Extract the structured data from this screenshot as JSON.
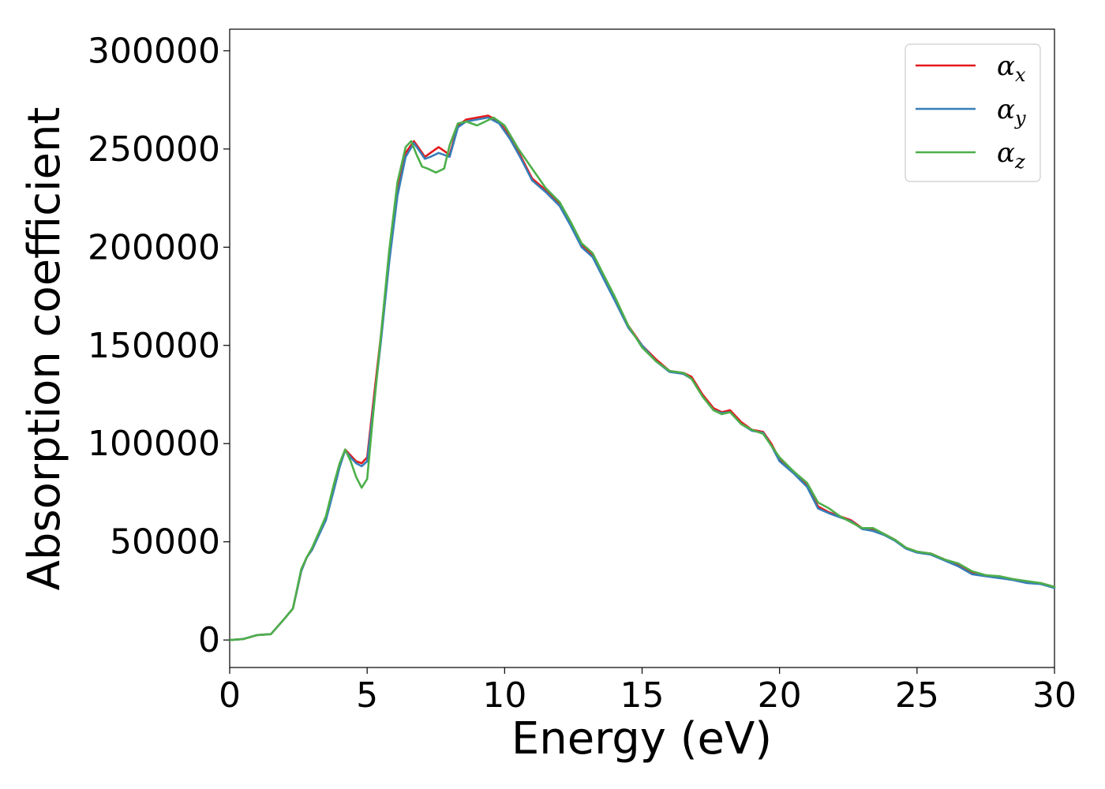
{
  "chart_data": {
    "type": "line",
    "title": "",
    "xlabel": "Energy (eV)",
    "ylabel": "Absorption coefficient",
    "xlim": [
      0,
      30
    ],
    "ylim": [
      -14000,
      311000
    ],
    "xticks": [
      0,
      5,
      10,
      15,
      20,
      25,
      30
    ],
    "yticks": [
      0,
      50000,
      100000,
      150000,
      200000,
      250000,
      300000
    ],
    "xtick_labels": [
      "0",
      "5",
      "10",
      "15",
      "20",
      "25",
      "30"
    ],
    "ytick_labels": [
      "0",
      "50000",
      "100000",
      "150000",
      "200000",
      "250000",
      "300000"
    ],
    "grid": false,
    "legend_position": "top-right",
    "series": [
      {
        "name": "α_x",
        "label_main": "α",
        "label_sub": "x",
        "color": "#e41a1c",
        "x": [
          0,
          0.5,
          1.0,
          1.5,
          2.0,
          2.3,
          2.6,
          2.8,
          3.0,
          3.5,
          3.8,
          4.0,
          4.2,
          4.4,
          4.6,
          4.8,
          5.0,
          5.2,
          5.5,
          5.8,
          6.1,
          6.4,
          6.7,
          6.9,
          7.1,
          7.3,
          7.6,
          7.8,
          8.0,
          8.3,
          8.6,
          9.0,
          9.4,
          9.8,
          10.2,
          10.6,
          11.0,
          11.5,
          12.0,
          12.4,
          12.8,
          13.2,
          13.6,
          14.0,
          14.5,
          15.0,
          15.5,
          16.0,
          16.5,
          16.8,
          17.2,
          17.6,
          17.9,
          18.2,
          18.6,
          19.0,
          19.4,
          19.7,
          20.0,
          20.5,
          21.0,
          21.4,
          21.8,
          22.2,
          22.6,
          23.0,
          23.4,
          23.8,
          24.2,
          24.6,
          25.0,
          25.5,
          26.0,
          26.5,
          27.0,
          27.5,
          28.0,
          28.5,
          29.0,
          29.5,
          30.0
        ],
        "y": [
          0,
          500,
          2500,
          3000,
          11000,
          16000,
          35000,
          42000,
          46000,
          62000,
          78000,
          89000,
          97000,
          94000,
          91000,
          90000,
          93000,
          118000,
          155000,
          195000,
          228000,
          248000,
          254000,
          250000,
          246000,
          248000,
          251000,
          249000,
          247000,
          262000,
          265000,
          266000,
          267000,
          264000,
          256000,
          246000,
          235000,
          229000,
          222000,
          212000,
          201000,
          196000,
          185000,
          174000,
          160000,
          150000,
          143000,
          137000,
          136000,
          134000,
          125000,
          118000,
          116000,
          117000,
          111000,
          107000,
          106000,
          100000,
          92000,
          86000,
          79000,
          68000,
          65000,
          63000,
          61000,
          57000,
          56000,
          54000,
          51000,
          47000,
          45000,
          44000,
          41000,
          38000,
          34000,
          33000,
          32000,
          31000,
          29500,
          29000,
          27000
        ]
      },
      {
        "name": "α_y",
        "label_main": "α",
        "label_sub": "y",
        "color": "#377eb8",
        "x": [
          0,
          0.5,
          1.0,
          1.5,
          2.0,
          2.3,
          2.6,
          2.8,
          3.0,
          3.5,
          3.8,
          4.0,
          4.2,
          4.4,
          4.6,
          4.8,
          5.0,
          5.2,
          5.5,
          5.8,
          6.1,
          6.4,
          6.7,
          6.9,
          7.1,
          7.3,
          7.6,
          7.8,
          8.0,
          8.3,
          8.6,
          9.0,
          9.4,
          9.8,
          10.2,
          10.6,
          11.0,
          11.5,
          12.0,
          12.4,
          12.8,
          13.2,
          13.6,
          14.0,
          14.5,
          15.0,
          15.5,
          16.0,
          16.5,
          16.8,
          17.2,
          17.6,
          17.9,
          18.2,
          18.6,
          19.0,
          19.4,
          19.7,
          20.0,
          20.5,
          21.0,
          21.4,
          21.8,
          22.2,
          22.6,
          23.0,
          23.4,
          23.8,
          24.2,
          24.6,
          25.0,
          25.5,
          26.0,
          26.5,
          27.0,
          27.5,
          28.0,
          28.5,
          29.0,
          29.5,
          30.0
        ],
        "y": [
          0,
          500,
          2500,
          3000,
          11000,
          16000,
          35000,
          42000,
          46000,
          61000,
          77000,
          88000,
          96500,
          93000,
          90000,
          88500,
          91000,
          115000,
          152000,
          192000,
          226000,
          246000,
          253000,
          249000,
          245000,
          246000,
          248000,
          247000,
          246000,
          261000,
          264000,
          265000,
          266000,
          263000,
          255000,
          245000,
          234000,
          228000,
          221000,
          211000,
          200000,
          195000,
          184000,
          173000,
          159000,
          150000,
          142000,
          136500,
          135500,
          133000,
          124000,
          117000,
          115500,
          116000,
          110000,
          106500,
          105500,
          99000,
          91000,
          85000,
          78000,
          67000,
          64500,
          62500,
          60500,
          56500,
          55500,
          53500,
          50500,
          46500,
          44500,
          43500,
          40500,
          37500,
          33500,
          32500,
          31500,
          30500,
          29000,
          28500,
          26500
        ]
      },
      {
        "name": "α_z",
        "label_main": "α",
        "label_sub": "z",
        "color": "#4daf4a",
        "x": [
          0,
          0.5,
          1.0,
          1.5,
          2.0,
          2.3,
          2.6,
          2.8,
          3.0,
          3.5,
          3.8,
          4.0,
          4.2,
          4.4,
          4.6,
          4.8,
          5.0,
          5.2,
          5.5,
          5.8,
          6.1,
          6.4,
          6.6,
          6.8,
          7.0,
          7.2,
          7.5,
          7.8,
          8.0,
          8.3,
          8.6,
          9.0,
          9.3,
          9.6,
          10.0,
          10.5,
          11.0,
          11.5,
          12.0,
          12.4,
          12.8,
          13.2,
          13.6,
          14.0,
          14.5,
          15.0,
          15.5,
          16.0,
          16.5,
          16.8,
          17.2,
          17.6,
          17.9,
          18.2,
          18.6,
          19.0,
          19.4,
          19.7,
          20.0,
          20.5,
          21.0,
          21.4,
          21.8,
          22.2,
          22.6,
          23.0,
          23.4,
          23.8,
          24.2,
          24.6,
          25.0,
          25.5,
          26.0,
          26.5,
          27.0,
          27.5,
          28.0,
          28.5,
          29.0,
          29.5,
          30.0
        ],
        "y": [
          0,
          500,
          2500,
          3000,
          11000,
          16000,
          36000,
          42000,
          47000,
          63000,
          80000,
          90000,
          97000,
          91000,
          83000,
          77500,
          82000,
          112000,
          155000,
          198000,
          233000,
          251000,
          254000,
          247000,
          241000,
          240000,
          238000,
          240000,
          252000,
          263000,
          264000,
          262000,
          264000,
          266000,
          262000,
          250000,
          240000,
          230000,
          223000,
          213000,
          202000,
          197000,
          186000,
          175000,
          160000,
          149000,
          142000,
          137000,
          136000,
          133000,
          124000,
          117000,
          115000,
          116000,
          110000,
          107000,
          105000,
          99000,
          93000,
          86000,
          80000,
          70000,
          67000,
          63000,
          60000,
          57000,
          57000,
          54000,
          51000,
          47000,
          45000,
          44000,
          41000,
          39000,
          35000,
          33000,
          32500,
          31000,
          30000,
          29000,
          27000
        ]
      }
    ]
  }
}
